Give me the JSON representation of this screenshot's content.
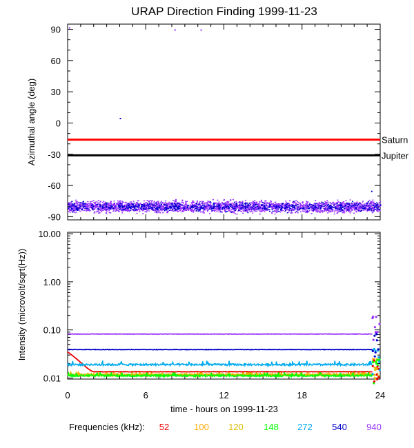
{
  "title": "URAP Direction Finding  1999-11-23",
  "chart_data": [
    {
      "type": "scatter",
      "panel": "top",
      "ylabel": "Azimuthal angle (deg)",
      "xlim": [
        0,
        24
      ],
      "ylim": [
        -93,
        95
      ],
      "yticks": [
        "90",
        "60",
        "30",
        "0",
        "-30",
        "-60",
        "-90"
      ],
      "yticks_values": [
        90,
        60,
        30,
        0,
        -30,
        -60,
        -90
      ],
      "reference_lines": [
        {
          "name": "Saturn",
          "value": -16,
          "color": "#ff0000"
        },
        {
          "name": "Jupiter",
          "value": -31,
          "color": "#000000"
        }
      ],
      "series": [
        {
          "frequency_khz": 940,
          "color": "#9933ff",
          "y_band": [
            -88,
            -72
          ],
          "center": -80,
          "outliers": [
            {
              "x": 8.2,
              "y": 90
            },
            {
              "x": 10.2,
              "y": 90
            },
            {
              "x": 0.1,
              "y": 92
            }
          ]
        },
        {
          "frequency_khz": 540,
          "color": "#0000cc",
          "y_band": [
            -86,
            -74
          ],
          "center": -80,
          "outliers": [
            {
              "x": 4.0,
              "y": 5
            },
            {
              "x": 23.3,
              "y": -65
            }
          ]
        }
      ]
    },
    {
      "type": "line",
      "panel": "bottom",
      "ylabel": "Intensity (microvolt/sqrt(Hz))",
      "xlabel": "time - hours on 1999-11-23",
      "xlim": [
        0,
        24
      ],
      "ylim_log": [
        0.01,
        10
      ],
      "yticks": [
        "10.00",
        "1.00",
        "0.10",
        "0.01"
      ],
      "yticks_values": [
        10,
        1,
        0.1,
        0.01
      ],
      "xticks": [
        "0",
        "6",
        "12",
        "18",
        "24"
      ],
      "xticks_values": [
        0,
        6,
        12,
        18,
        24
      ],
      "series": [
        {
          "frequency_khz": 940,
          "color": "#9933ff",
          "level": 0.082
        },
        {
          "frequency_khz": 540,
          "color": "#0000cc",
          "level": 0.039
        },
        {
          "frequency_khz": 272,
          "color": "#00aaee",
          "level": 0.019
        },
        {
          "frequency_khz": 52,
          "color": "#ee0000",
          "level": 0.0135
        },
        {
          "frequency_khz": 148,
          "color": "#00ff00",
          "level": 0.0112
        },
        {
          "frequency_khz": 120,
          "color": "#ddbb00",
          "level": 0.0118
        },
        {
          "frequency_khz": 100,
          "color": "#ffaa00",
          "level": 0.0115
        }
      ]
    }
  ],
  "legend": {
    "label": "Frequencies (kHz):",
    "items": [
      {
        "text": "52",
        "color": "#ee0000"
      },
      {
        "text": "100",
        "color": "#ffaa00"
      },
      {
        "text": "120",
        "color": "#ddbb00"
      },
      {
        "text": "148",
        "color": "#00ff00"
      },
      {
        "text": "272",
        "color": "#00aaee"
      },
      {
        "text": "540",
        "color": "#0000cc"
      },
      {
        "text": "940",
        "color": "#9933ff"
      }
    ]
  }
}
